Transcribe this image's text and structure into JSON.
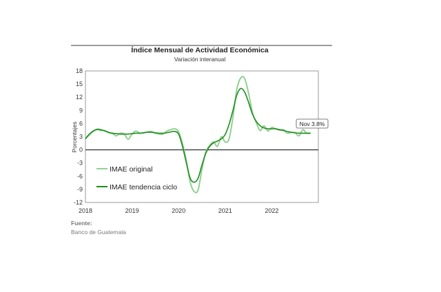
{
  "chart_data": {
    "type": "line",
    "title": "Índice Mensual de Actividad Económica",
    "subtitle": "Variación interanual",
    "ylabel": "Porcentajes",
    "xlabel": "",
    "ylim": [
      -12,
      18
    ],
    "xlim": [
      "2018-01",
      "2022-12"
    ],
    "grid": false,
    "legend_position": "lower-left",
    "y_ticks": [
      18,
      15,
      12,
      9,
      6,
      3,
      0,
      -3,
      -6,
      -9,
      -12
    ],
    "x_tick_labels": [
      "2018",
      "2019",
      "2020",
      "2021",
      "2022"
    ],
    "x_tick_dates": [
      "2018-01",
      "2019-01",
      "2020-01",
      "2021-01",
      "2022-01"
    ],
    "annotation": {
      "text": "Nov 3.8%",
      "x": "2022-11",
      "y": 3.8
    },
    "colors": {
      "original": "#8fd18f",
      "trend": "#1e8c1e",
      "negative_tick": "#e0302a",
      "zero_line": "#000000",
      "frame": "#7f7f7f"
    },
    "x": [
      "2018-01",
      "2018-02",
      "2018-03",
      "2018-04",
      "2018-05",
      "2018-06",
      "2018-07",
      "2018-08",
      "2018-09",
      "2018-10",
      "2018-11",
      "2018-12",
      "2019-01",
      "2019-02",
      "2019-03",
      "2019-04",
      "2019-05",
      "2019-06",
      "2019-07",
      "2019-08",
      "2019-09",
      "2019-10",
      "2019-11",
      "2019-12",
      "2020-01",
      "2020-02",
      "2020-03",
      "2020-04",
      "2020-05",
      "2020-06",
      "2020-07",
      "2020-08",
      "2020-09",
      "2020-10",
      "2020-11",
      "2020-12",
      "2021-01",
      "2021-02",
      "2021-03",
      "2021-04",
      "2021-05",
      "2021-06",
      "2021-07",
      "2021-08",
      "2021-09",
      "2021-10",
      "2021-11",
      "2021-12",
      "2022-01",
      "2022-02",
      "2022-03",
      "2022-04",
      "2022-05",
      "2022-06",
      "2022-07",
      "2022-08",
      "2022-09",
      "2022-10",
      "2022-11"
    ],
    "series": [
      {
        "name": "IMAE original",
        "values": [
          2.6,
          3.4,
          4.2,
          4.6,
          4.4,
          4.4,
          3.9,
          3.7,
          3.2,
          3.8,
          3.6,
          2.4,
          3.6,
          4.3,
          3.8,
          3.9,
          4.1,
          4.2,
          3.8,
          3.6,
          3.6,
          4.3,
          4.6,
          4.8,
          4.1,
          1.4,
          -2.5,
          -7.4,
          -9.5,
          -9.2,
          -4.5,
          -0.5,
          1.0,
          1.8,
          0.8,
          3.0,
          1.8,
          2.5,
          7.5,
          13.8,
          16.4,
          16.3,
          13.0,
          8.6,
          6.2,
          4.4,
          5.5,
          4.3,
          5.1,
          4.8,
          4.5,
          4.6,
          3.8,
          4.0,
          3.9,
          3.2,
          4.6,
          3.8,
          3.8
        ]
      },
      {
        "name": "IMAE tendencia ciclo",
        "values": [
          2.5,
          3.6,
          4.3,
          4.7,
          4.6,
          4.3,
          4.0,
          3.8,
          3.7,
          3.6,
          3.6,
          3.6,
          3.7,
          3.8,
          3.8,
          3.9,
          4.0,
          4.0,
          3.9,
          3.8,
          3.8,
          3.9,
          4.1,
          4.2,
          3.6,
          0.8,
          -3.0,
          -6.5,
          -7.4,
          -6.5,
          -3.5,
          -0.8,
          0.8,
          1.6,
          2.0,
          2.5,
          3.5,
          5.8,
          9.0,
          12.5,
          14.0,
          13.2,
          10.9,
          8.2,
          6.5,
          5.5,
          5.0,
          4.8,
          4.8,
          4.8,
          4.6,
          4.4,
          4.2,
          4.0,
          3.9,
          3.8,
          3.8,
          3.8,
          3.8
        ]
      }
    ]
  },
  "source": {
    "label": "Fuente:",
    "text": "Banco de Guatemala"
  }
}
